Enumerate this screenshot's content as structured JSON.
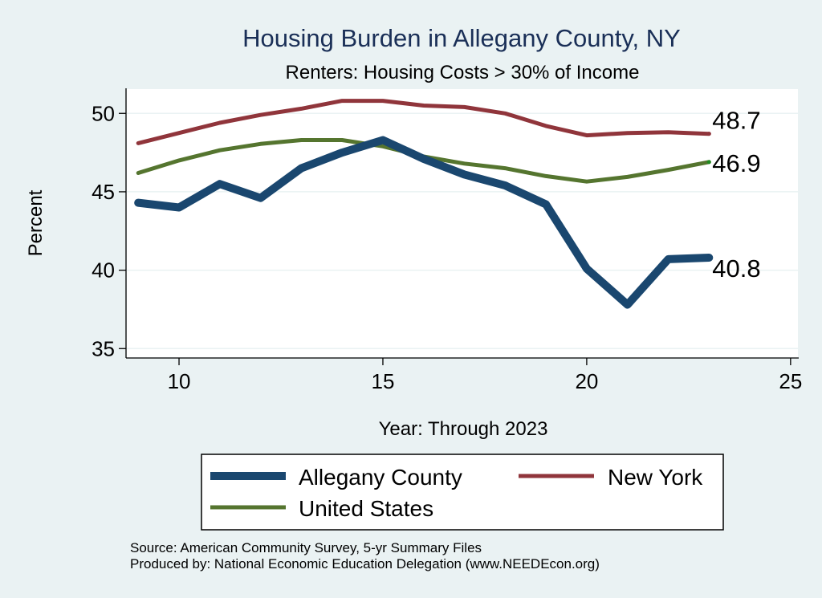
{
  "chart_data": {
    "type": "line",
    "title": "Housing Burden in Allegany County, NY",
    "subtitle": "Renters: Housing Costs > 30% of Income",
    "xlabel": "Year: Through 2023",
    "ylabel": "Percent",
    "xlim": [
      8.7,
      25.2
    ],
    "ylim": [
      34.4,
      51.6
    ],
    "xticks": [
      10,
      15,
      20,
      25
    ],
    "yticks": [
      35,
      40,
      45,
      50
    ],
    "grid": true,
    "series": [
      {
        "name": "Allegany County",
        "color": "#1a476f",
        "x": [
          9,
          10,
          11,
          12,
          13,
          14,
          15,
          16,
          17,
          18,
          19,
          20,
          21,
          22,
          23
        ],
        "values": [
          44.3,
          44.0,
          45.5,
          44.6,
          46.5,
          47.5,
          48.3,
          47.1,
          46.1,
          45.4,
          44.2,
          40.1,
          37.8,
          40.7,
          40.8
        ],
        "end_label": "40.8"
      },
      {
        "name": "New York",
        "color": "#90353b",
        "x": [
          9,
          10,
          11,
          12,
          13,
          14,
          15,
          16,
          17,
          18,
          19,
          20,
          21,
          22,
          23
        ],
        "values": [
          48.1,
          48.75,
          49.4,
          49.9,
          50.3,
          50.8,
          50.8,
          50.5,
          50.4,
          50.0,
          49.2,
          48.6,
          48.75,
          48.8,
          48.7
        ],
        "end_label": "48.7"
      },
      {
        "name": "United States",
        "color": "#55752f",
        "x": [
          9,
          10,
          11,
          12,
          13,
          14,
          15,
          16,
          17,
          18,
          19,
          20,
          21,
          22,
          23
        ],
        "values": [
          46.2,
          47.0,
          47.65,
          48.05,
          48.3,
          48.3,
          47.9,
          47.25,
          46.8,
          46.5,
          46.0,
          45.65,
          45.95,
          46.4,
          46.9
        ],
        "end_label": "46.9"
      }
    ],
    "legend_position": "bottom",
    "source": "Source: American Community Survey, 5-yr Summary Files",
    "produced_by": "Produced by: National Economic Education Delegation (www.NEEDEcon.org)"
  }
}
